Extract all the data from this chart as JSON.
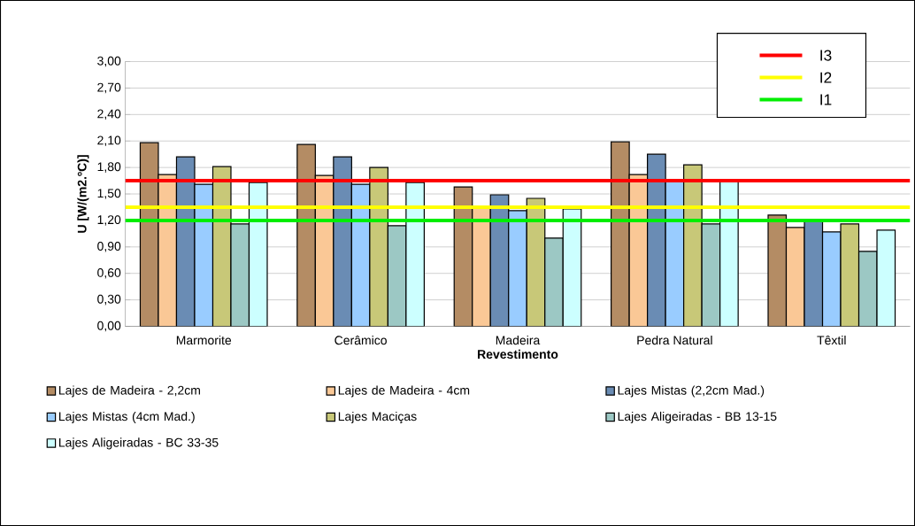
{
  "chart_data": {
    "type": "bar",
    "xlabel": "Revestimento",
    "ylabel": "U [W/(m2.ºC)]",
    "categories": [
      "Marmorite",
      "Cerâmico",
      "Madeira",
      "Pedra Natural",
      "Têxtil"
    ],
    "series": [
      {
        "name": "Lajes de Madeira - 2,2cm",
        "color": "#b48c64",
        "values": [
          2.08,
          2.06,
          1.58,
          2.09,
          1.26
        ]
      },
      {
        "name": "Lajes de Madeira - 4cm",
        "color": "#fac896",
        "values": [
          1.72,
          1.71,
          1.35,
          1.72,
          1.12
        ]
      },
      {
        "name": "Lajes Mistas (2,2cm Mad.)",
        "color": "#6a8cb4",
        "values": [
          1.92,
          1.92,
          1.49,
          1.95,
          1.2
        ]
      },
      {
        "name": "Lajes Mistas (4cm Mad.)",
        "color": "#99ccff",
        "values": [
          1.61,
          1.61,
          1.31,
          1.64,
          1.07
        ]
      },
      {
        "name": "Lajes Maciças",
        "color": "#c8c878",
        "values": [
          1.81,
          1.8,
          1.45,
          1.83,
          1.16
        ]
      },
      {
        "name": "Lajes Aligeiradas - BB 13-15",
        "color": "#9cc8c4",
        "values": [
          1.16,
          1.14,
          1.0,
          1.16,
          0.85
        ]
      },
      {
        "name": "Lajes Aligeiradas - BC 33-35",
        "color": "#ccffff",
        "values": [
          1.63,
          1.63,
          1.33,
          1.65,
          1.09
        ]
      }
    ],
    "ylim": [
      0,
      3.0
    ],
    "yticks": [
      {
        "value": 0,
        "label": "0,00"
      },
      {
        "value": 0.3,
        "label": "0,30"
      },
      {
        "value": 0.6,
        "label": "0,60"
      },
      {
        "value": 0.9,
        "label": "0,90"
      },
      {
        "value": 1.2,
        "label": "1,20"
      },
      {
        "value": 1.5,
        "label": "1,50"
      },
      {
        "value": 1.8,
        "label": "1,80"
      },
      {
        "value": 2.1,
        "label": "2,10"
      },
      {
        "value": 2.4,
        "label": "2,40"
      },
      {
        "value": 2.7,
        "label": "2,70"
      },
      {
        "value": 3.0,
        "label": "3,00"
      }
    ],
    "ref_lines": [
      {
        "axis": "y",
        "value": 1.65,
        "label": "I3",
        "color": "#ff0000"
      },
      {
        "axis": "y",
        "value": 1.35,
        "label": "I2",
        "color": "#ffff00"
      },
      {
        "axis": "y",
        "value": 1.2,
        "label": "I1",
        "color": "#00ee00"
      }
    ],
    "grid": "y",
    "legend": "bottom"
  }
}
